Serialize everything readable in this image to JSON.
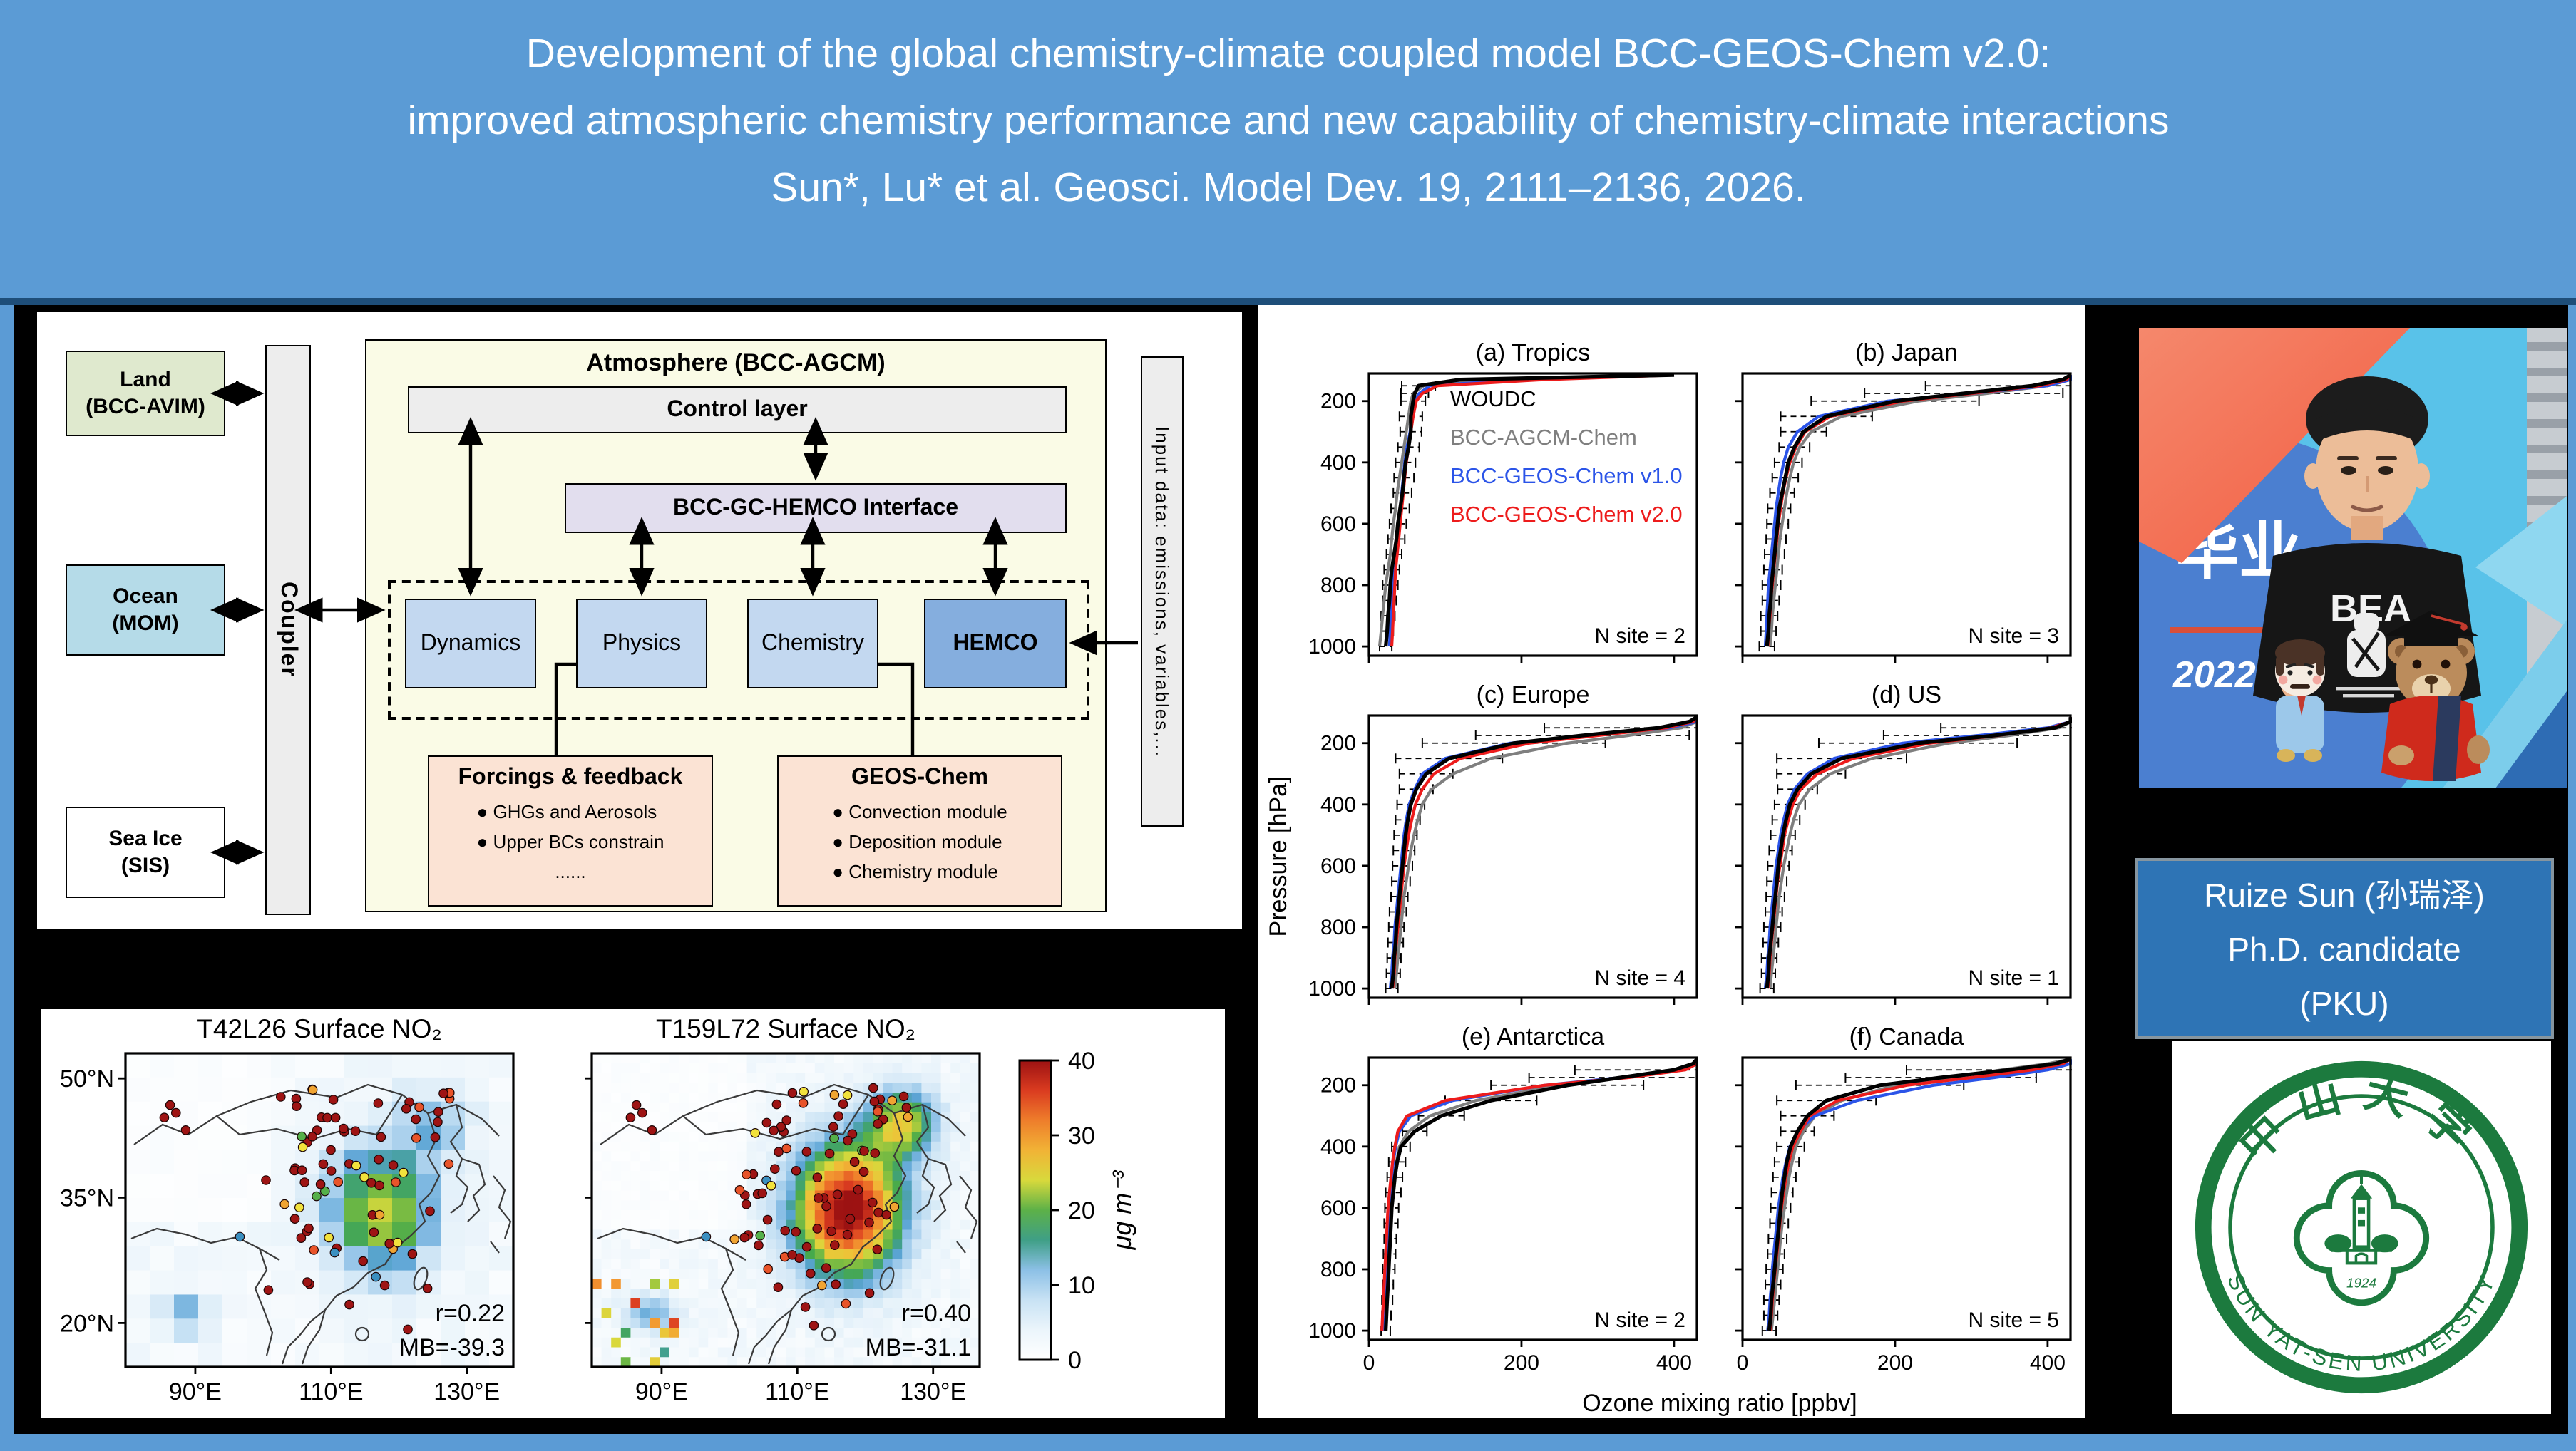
{
  "page": {
    "bg": "#5b9bd5",
    "divider": "#1e4e79",
    "content_bg": "#000000"
  },
  "title": {
    "line1": "Development of the global chemistry-climate coupled model BCC-GEOS-Chem v2.0:",
    "line2": "improved atmospheric chemistry performance and new capability of chemistry-climate interactions",
    "line3": "Sun*, Lu* et al. Geosci. Model Dev. 19, 2111–2136, 2026."
  },
  "bullet_glyph": "●",
  "diagram": {
    "land": {
      "line1": "Land",
      "line2": "(BCC-AVIM)",
      "fill": "#dfe9ce"
    },
    "ocean": {
      "line1": "Ocean",
      "line2": "(MOM)",
      "fill": "#b5dbe8"
    },
    "seaice": {
      "line1": "Sea Ice",
      "line2": "(SIS)",
      "fill": "#ffffff"
    },
    "coupler": {
      "label": "Coupler",
      "fill": "#ededed"
    },
    "atmosphere": {
      "label": "Atmosphere (BCC-AGCM)",
      "fill": "#fafbe6"
    },
    "control": {
      "label": "Control layer",
      "fill": "#ededed"
    },
    "interface": {
      "label": "BCC-GC-HEMCO Interface",
      "fill": "#e2deee"
    },
    "modules": [
      {
        "label": "Dynamics",
        "fill": "#c3d8f0"
      },
      {
        "label": "Physics",
        "fill": "#c3d8f0"
      },
      {
        "label": "Chemistry",
        "fill": "#c3d8f0"
      },
      {
        "label": "HEMCO",
        "fill": "#85aede"
      }
    ],
    "forcings": {
      "title": "Forcings & feedback",
      "bullets": [
        "GHGs and Aerosols",
        "Upper BCs constrain",
        "......"
      ]
    },
    "geoschem": {
      "title": "GEOS-Chem",
      "bullets": [
        "Convection module",
        "Deposition module",
        "Chemistry module"
      ]
    },
    "input_bar": {
      "label": "Input data: emissions, variables,..."
    }
  },
  "person": {
    "line1": "Ruize Sun (孙瑞泽)",
    "line2": "Ph.D. candidate",
    "line3": "(PKU)",
    "box_fill": "#2e74b5"
  },
  "photo": {
    "banner": "毕业",
    "year": "2022",
    "shirt": "BEA"
  },
  "logo": {
    "cn": "中山大学",
    "en": "SUN YAT-SEN UNIVERSITY",
    "year": "1924",
    "green": "#1c7a3e"
  },
  "chart_data": [
    {
      "type": "heatmap",
      "title_left": "T42L26 Surface NO₂",
      "title_right": "T159L72 Surface NO₂",
      "x_tick_labels": [
        "90°E",
        "110°E",
        "130°E"
      ],
      "y_tick_labels": [
        "50°N",
        "35°N",
        "20°N"
      ],
      "annotations_left": [
        "r=0.22",
        "MB=-39.3"
      ],
      "annotations_right": [
        "r=0.40",
        "MB=-31.1"
      ],
      "colorbar": {
        "min": 0,
        "max": 40,
        "ticks": [
          0,
          10,
          20,
          30,
          40
        ],
        "label": "μg m⁻³"
      },
      "description": "Simulated surface NO₂ over China (white-blue-green-yellow-red shading, 0–40 μg m⁻³) with monitoring-site observations as filled circles (mostly dark red, >40); coarse T42L26 hotspot ~20–30 over eastern China, fine T159L72 hotspot reaching ~40."
    },
    {
      "type": "line",
      "xlabel": "Ozone mixing ratio [ppbv]",
      "ylabel": "Pressure [hPa]",
      "xlim": [
        0,
        430
      ],
      "ylim": [
        1030,
        110
      ],
      "x_ticks": [
        0,
        200,
        400
      ],
      "y_ticks": [
        200,
        400,
        600,
        800,
        1000
      ],
      "legend": [
        "WOUDC",
        "BCC-AGCM-Chem",
        "BCC-GEOS-Chem v1.0",
        "BCC-GEOS-Chem v2.0"
      ],
      "colors": {
        "WOUDC": "#000000",
        "BCC-AGCM-Chem": "#7f7f7f",
        "BCC-GEOS-Chem v1.0": "#2b54e8",
        "BCC-GEOS-Chem v2.0": "#ed1c1c"
      },
      "pressures": [
        1000,
        950,
        900,
        850,
        800,
        750,
        700,
        650,
        600,
        550,
        500,
        450,
        400,
        350,
        300,
        250,
        200,
        175,
        150,
        130,
        115
      ],
      "panels": [
        {
          "label": "(a) Tropics",
          "n_site": "N site = 2",
          "series": {
            "WOUDC": [
              22,
              24,
              25,
              27,
              28,
              30,
              33,
              36,
              38,
              41,
              44,
              46,
              48,
              52,
              55,
              55,
              58,
              60,
              65,
              120,
              400
            ],
            "BCC-AGCM-Chem": [
              14,
              16,
              18,
              20,
              22,
              25,
              28,
              30,
              32,
              35,
              37,
              40,
              43,
              46,
              49,
              52,
              55,
              58,
              72,
              160,
              400
            ],
            "BCC-GEOS-Chem v1.0": [
              27,
              28,
              29,
              30,
              31,
              33,
              35,
              37,
              39,
              41,
              43,
              45,
              47,
              50,
              54,
              56,
              60,
              66,
              80,
              200,
              400
            ],
            "BCC-GEOS-Chem v2.0": [
              30,
              31,
              32,
              33,
              34,
              35,
              37,
              39,
              41,
              43,
              45,
              47,
              49,
              52,
              55,
              58,
              62,
              70,
              90,
              230,
              400
            ]
          },
          "err": [
            8,
            8,
            9,
            9,
            10,
            10,
            10,
            11,
            11,
            12,
            12,
            13,
            13,
            14,
            14,
            15,
            16,
            18,
            22,
            40,
            60
          ]
        },
        {
          "label": "(b) Japan",
          "n_site": "N site = 3",
          "series": {
            "WOUDC": [
              32,
              34,
              35,
              37,
              38,
              40,
              42,
              44,
              46,
              48,
              52,
              56,
              60,
              68,
              80,
              110,
              200,
              290,
              380,
              420,
              430
            ],
            "BCC-AGCM-Chem": [
              36,
              38,
              39,
              41,
              43,
              45,
              47,
              49,
              52,
              55,
              58,
              62,
              67,
              75,
              90,
              130,
              230,
              320,
              400,
              430,
              430
            ],
            "BCC-GEOS-Chem v1.0": [
              30,
              31,
              32,
              33,
              34,
              36,
              38,
              40,
              42,
              44,
              47,
              50,
              54,
              60,
              72,
              100,
              190,
              300,
              400,
              430,
              430
            ],
            "BCC-GEOS-Chem v2.0": [
              33,
              34,
              36,
              37,
              39,
              41,
              43,
              45,
              47,
              50,
              53,
              57,
              62,
              70,
              82,
              115,
              210,
              300,
              390,
              425,
              430
            ]
          },
          "err": [
            10,
            10,
            11,
            11,
            12,
            12,
            13,
            13,
            14,
            15,
            16,
            17,
            18,
            20,
            30,
            60,
            110,
            130,
            140,
            150,
            150
          ]
        },
        {
          "label": "(c) Europe",
          "n_site": "N site = 4",
          "series": {
            "WOUDC": [
              30,
              32,
              33,
              35,
              36,
              38,
              40,
              42,
              44,
              46,
              48,
              51,
              55,
              62,
              75,
              105,
              190,
              280,
              380,
              420,
              430
            ],
            "BCC-AGCM-Chem": [
              34,
              36,
              38,
              40,
              42,
              44,
              46,
              49,
              52,
              55,
              59,
              64,
              70,
              82,
              110,
              160,
              260,
              340,
              410,
              430,
              430
            ],
            "BCC-GEOS-Chem v1.0": [
              28,
              30,
              31,
              33,
              34,
              36,
              38,
              40,
              42,
              44,
              46,
              49,
              53,
              60,
              70,
              100,
              185,
              285,
              395,
              430,
              430
            ],
            "BCC-GEOS-Chem v2.0": [
              31,
              33,
              34,
              36,
              38,
              40,
              42,
              44,
              46,
              49,
              52,
              56,
              61,
              70,
              85,
              120,
              210,
              300,
              390,
              425,
              430
            ]
          },
          "err": [
            8,
            9,
            9,
            10,
            10,
            11,
            11,
            12,
            13,
            14,
            15,
            16,
            18,
            22,
            35,
            70,
            120,
            140,
            150,
            150,
            150
          ]
        },
        {
          "label": "(d) US",
          "n_site": "N site = 1",
          "series": {
            "WOUDC": [
              32,
              34,
              35,
              37,
              39,
              41,
              43,
              45,
              47,
              50,
              53,
              57,
              62,
              72,
              90,
              130,
              230,
              330,
              410,
              430,
              430
            ],
            "BCC-AGCM-Chem": [
              36,
              38,
              40,
              42,
              44,
              46,
              48,
              51,
              54,
              58,
              62,
              67,
              74,
              88,
              115,
              170,
              270,
              350,
              415,
              430,
              430
            ],
            "BCC-GEOS-Chem v1.0": [
              30,
              32,
              33,
              35,
              36,
              38,
              40,
              42,
              44,
              47,
              50,
              54,
              59,
              68,
              85,
              120,
              210,
              310,
              400,
              430,
              430
            ],
            "BCC-GEOS-Chem v2.0": [
              33,
              35,
              36,
              38,
              40,
              42,
              44,
              46,
              49,
              52,
              55,
              60,
              66,
              76,
              98,
              145,
              245,
              335,
              405,
              430,
              430
            ]
          },
          "err": [
            9,
            9,
            10,
            10,
            11,
            11,
            12,
            13,
            14,
            15,
            16,
            18,
            20,
            26,
            45,
            85,
            130,
            145,
            150,
            150,
            150
          ]
        },
        {
          "label": "(e) Antarctica",
          "n_site": "N site = 2",
          "series": {
            "WOUDC": [
              22,
              23,
              24,
              25,
              26,
              27,
              28,
              29,
              30,
              32,
              34,
              37,
              42,
              60,
              95,
              160,
              260,
              330,
              400,
              425,
              430
            ],
            "BCC-AGCM-Chem": [
              20,
              21,
              22,
              23,
              24,
              25,
              26,
              27,
              29,
              31,
              33,
              36,
              40,
              52,
              80,
              140,
              250,
              330,
              405,
              430,
              430
            ],
            "BCC-GEOS-Chem v1.0": [
              18,
              19,
              20,
              21,
              22,
              23,
              24,
              25,
              26,
              28,
              30,
              32,
              35,
              40,
              55,
              110,
              230,
              330,
              410,
              430,
              430
            ],
            "BCC-GEOS-Chem v2.0": [
              17,
              18,
              19,
              20,
              21,
              22,
              23,
              24,
              25,
              27,
              29,
              31,
              34,
              38,
              50,
              100,
              230,
              340,
              415,
              430,
              430
            ]
          },
          "err": [
            6,
            6,
            7,
            7,
            8,
            8,
            8,
            9,
            9,
            10,
            10,
            11,
            12,
            16,
            30,
            60,
            100,
            120,
            130,
            140,
            140
          ]
        },
        {
          "label": "(f) Canada",
          "n_site": "N site = 5",
          "series": {
            "WOUDC": [
              35,
              37,
              38,
              40,
              42,
              44,
              46,
              48,
              50,
              52,
              55,
              58,
              63,
              72,
              85,
              110,
              180,
              260,
              350,
              410,
              430
            ],
            "BCC-AGCM-Chem": [
              38,
              40,
              42,
              44,
              46,
              48,
              50,
              52,
              55,
              58,
              61,
              65,
              70,
              80,
              95,
              130,
              200,
              270,
              340,
              400,
              430
            ],
            "BCC-GEOS-Chem v1.0": [
              33,
              35,
              36,
              38,
              39,
              41,
              43,
              45,
              47,
              50,
              53,
              57,
              62,
              72,
              95,
              150,
              250,
              330,
              400,
              430,
              430
            ],
            "BCC-GEOS-Chem v2.0": [
              36,
              38,
              39,
              41,
              43,
              45,
              47,
              49,
              51,
              54,
              57,
              61,
              66,
              76,
              88,
              125,
              215,
              300,
              380,
              420,
              430
            ]
          },
          "err": [
            9,
            9,
            10,
            10,
            11,
            11,
            12,
            12,
            13,
            14,
            15,
            16,
            18,
            22,
            35,
            65,
            110,
            125,
            135,
            145,
            150
          ]
        }
      ]
    }
  ]
}
